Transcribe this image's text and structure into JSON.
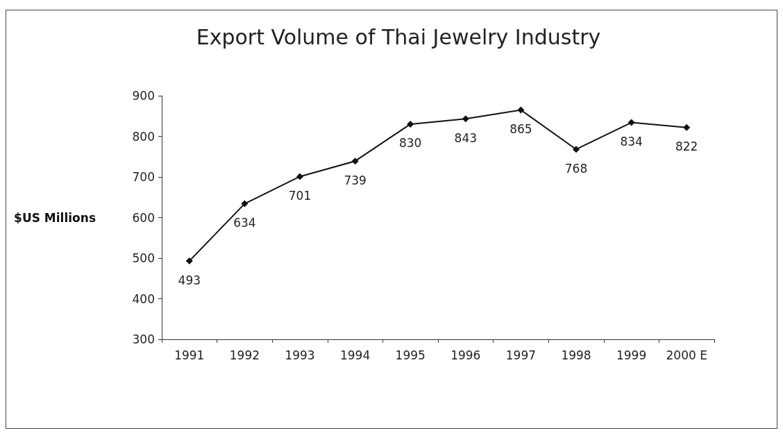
{
  "chart_data": {
    "type": "line",
    "title": "Export Volume of Thai Jewelry Industry",
    "ylabel": "$US Millions",
    "categories": [
      "1991",
      "1992",
      "1993",
      "1994",
      "1995",
      "1996",
      "1997",
      "1998",
      "1999",
      "2000 E"
    ],
    "values": [
      493,
      634,
      701,
      739,
      830,
      843,
      865,
      768,
      834,
      822
    ],
    "color": "#111111",
    "ylim": [
      300,
      900
    ],
    "yticks": [
      300,
      400,
      500,
      600,
      700,
      800,
      900
    ],
    "grid": false,
    "marker": "diamond",
    "line_style": "solid",
    "data_labels": true
  }
}
